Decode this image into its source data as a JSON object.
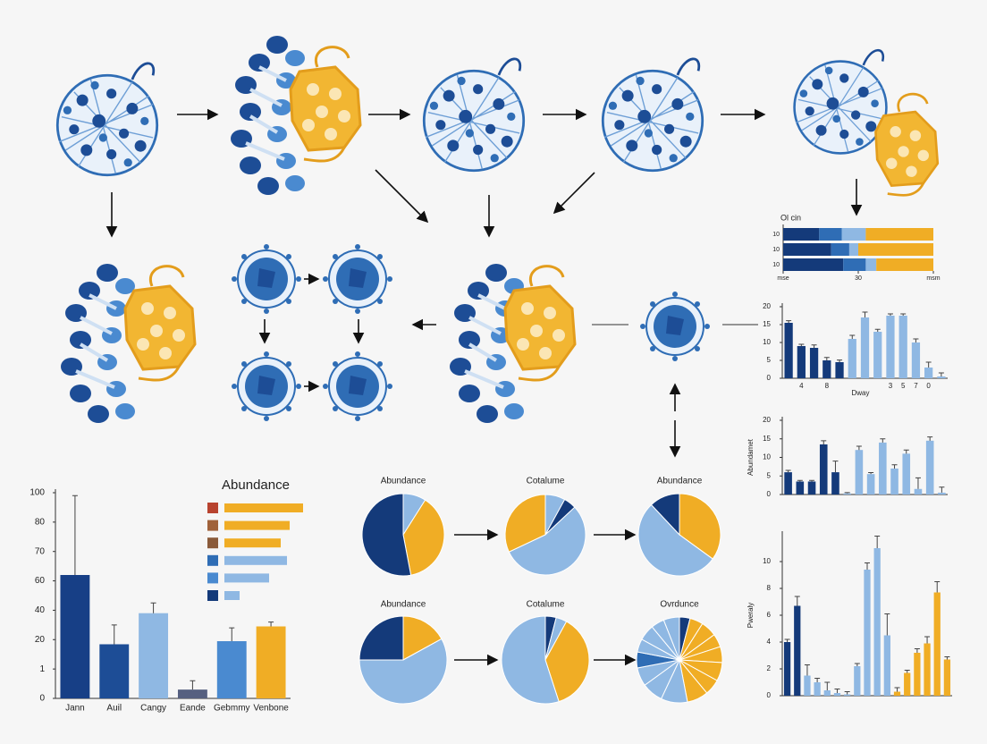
{
  "chart_data": [
    {
      "type": "bar",
      "categories": [
        "Jann",
        "Auil",
        "Cangy",
        "Eande",
        "Gebmmy",
        "Venbone"
      ],
      "values": [
        62,
        17,
        38,
        0.3,
        19,
        29
      ],
      "errors": [
        36,
        13,
        7,
        0.3,
        9,
        3
      ],
      "colors": [
        "#173f86",
        "#1d4d96",
        "#8fb8e3",
        "#566080",
        "#4a8ad0",
        "#f0ad25"
      ],
      "ylim": [
        0,
        100
      ],
      "yticks": [
        0,
        1,
        20,
        40,
        60,
        70,
        80,
        100
      ],
      "yscale": "tick-spaced"
    },
    {
      "type": "hbar",
      "title": "Abundance",
      "values": [
        88,
        73,
        63,
        70,
        50,
        17
      ],
      "colors": [
        "#f0ad25",
        "#f0ad25",
        "#f0ad25",
        "#8fb8e3",
        "#8fb8e3",
        "#8fb8e3"
      ],
      "swatch_colors": [
        "#b8432f",
        "#a0623a",
        "#8a5a3a",
        "#2f6db5",
        "#4a8ad0",
        "#143a7a"
      ]
    },
    {
      "type": "pie",
      "title": "Abundance",
      "values": [
        9,
        38,
        53
      ],
      "colors": [
        "#8fb8e3",
        "#f0ad25",
        "#143a7a"
      ]
    },
    {
      "type": "pie",
      "title": "Cotalume",
      "values": [
        8,
        5,
        55,
        32
      ],
      "colors": [
        "#8fb8e3",
        "#143a7a",
        "#8fb8e3",
        "#f0ad25"
      ]
    },
    {
      "type": "pie",
      "title": "Abundance",
      "values": [
        35,
        53,
        12
      ],
      "colors": [
        "#f0ad25",
        "#8fb8e3",
        "#143a7a"
      ]
    },
    {
      "type": "pie",
      "title": "Abundance",
      "values": [
        17,
        58,
        25
      ],
      "colors": [
        "#f0ad25",
        "#8fb8e3",
        "#143a7a"
      ]
    },
    {
      "type": "pie",
      "title": "Cotalume",
      "values": [
        4,
        4,
        37,
        55
      ],
      "colors": [
        "#143a7a",
        "#8fb8e3",
        "#f0ad25",
        "#8fb8e3"
      ]
    },
    {
      "type": "pie",
      "title": "Ovrdunce",
      "values": [
        4,
        5,
        6,
        5,
        6,
        7,
        6,
        8,
        10,
        8,
        7,
        6,
        5,
        6,
        5,
        6
      ],
      "colors": [
        "#143a7a",
        "#f0ad25",
        "#f0ad25",
        "#f0ad25",
        "#f0ad25",
        "#f0ad25",
        "#f0ad25",
        "#f0ad25",
        "#8fb8e3",
        "#8fb8e3",
        "#8fb8e3",
        "#2f6db5",
        "#8fb8e3",
        "#8fb8e3",
        "#8fb8e3",
        "#8fb8e3"
      ]
    },
    {
      "type": "stacked-hbar",
      "title": "Ol cin",
      "categories": [
        "10",
        "10",
        "10"
      ],
      "series": [
        {
          "color": "#143a7a",
          "values": [
            24,
            32,
            40
          ]
        },
        {
          "color": "#2f6db5",
          "values": [
            15,
            12,
            15
          ]
        },
        {
          "color": "#8fb8e3",
          "values": [
            16,
            6,
            7
          ]
        },
        {
          "color": "#f0ad25",
          "values": [
            45,
            50,
            38
          ]
        }
      ],
      "xlim": [
        0,
        100
      ],
      "xticks": [
        {
          "value": 0,
          "label": "mse"
        },
        {
          "value": 50,
          "label": "30"
        },
        {
          "value": 100,
          "label": "msm"
        }
      ]
    },
    {
      "type": "bar",
      "x_label": "Dway",
      "categories": [
        null,
        "4",
        null,
        "8",
        null,
        null,
        null,
        null,
        "3",
        "5",
        "7",
        "0",
        null
      ],
      "values": [
        15.5,
        9,
        8.5,
        5,
        4.5,
        11,
        17,
        13,
        17.5,
        17.5,
        10,
        3,
        0.5
      ],
      "errors": [
        0.6,
        0.5,
        0.8,
        0.8,
        0.6,
        1,
        1.5,
        0.7,
        0.5,
        0.5,
        1,
        1.5,
        1
      ],
      "colors": [
        "#143a7a",
        "#143a7a",
        "#143a7a",
        "#143a7a",
        "#143a7a",
        "#8fb8e3",
        "#8fb8e3",
        "#8fb8e3",
        "#8fb8e3",
        "#8fb8e3",
        "#8fb8e3",
        "#8fb8e3",
        "#8fb8e3"
      ],
      "ylim": [
        0,
        20
      ],
      "yticks": [
        0,
        5,
        10,
        15,
        20
      ]
    },
    {
      "type": "bar",
      "y_label": "Abundamet",
      "categories": [
        null,
        null,
        null,
        null,
        null,
        null,
        null,
        null,
        null,
        null,
        null,
        null,
        null,
        null
      ],
      "values": [
        6,
        3.5,
        3.5,
        13.5,
        6,
        0.3,
        12,
        5.5,
        14,
        7,
        11,
        1.5,
        14.5,
        0.5
      ],
      "errors": [
        0.5,
        0.3,
        0.3,
        1,
        3,
        0.2,
        1,
        0.4,
        1,
        1,
        1,
        3,
        1,
        1.5
      ],
      "colors": [
        "#143a7a",
        "#143a7a",
        "#143a7a",
        "#143a7a",
        "#143a7a",
        "#8fb8e3",
        "#8fb8e3",
        "#8fb8e3",
        "#8fb8e3",
        "#8fb8e3",
        "#8fb8e3",
        "#8fb8e3",
        "#8fb8e3",
        "#8fb8e3"
      ],
      "ylim": [
        0,
        20
      ],
      "yticks": [
        0,
        5,
        10,
        15,
        20
      ]
    },
    {
      "type": "bar",
      "y_label": "Pweraly",
      "categories": [
        null,
        null,
        null,
        null,
        null,
        null,
        null,
        null,
        null,
        null,
        null,
        null,
        null,
        null,
        null,
        null,
        null
      ],
      "values": [
        4,
        6.7,
        1.5,
        1,
        0.4,
        0.2,
        0.1,
        2.2,
        9.4,
        11,
        4.5,
        0.3,
        1.7,
        3.2,
        3.9,
        7.7,
        2.7
      ],
      "errors": [
        0.2,
        0.7,
        0.8,
        0.3,
        0.6,
        0.3,
        0.2,
        0.2,
        0.5,
        0.9,
        1.6,
        0.3,
        0.2,
        0.3,
        0.5,
        0.8,
        0.2
      ],
      "colors": [
        "#143a7a",
        "#143a7a",
        "#8fb8e3",
        "#8fb8e3",
        "#8fb8e3",
        "#8fb8e3",
        "#8fb8e3",
        "#8fb8e3",
        "#8fb8e3",
        "#8fb8e3",
        "#8fb8e3",
        "#f0ad25",
        "#f0ad25",
        "#f0ad25",
        "#f0ad25",
        "#f0ad25",
        "#f0ad25"
      ],
      "ylim": [
        0,
        12
      ],
      "yticks": [
        0,
        2,
        4,
        6,
        8,
        10
      ]
    }
  ]
}
